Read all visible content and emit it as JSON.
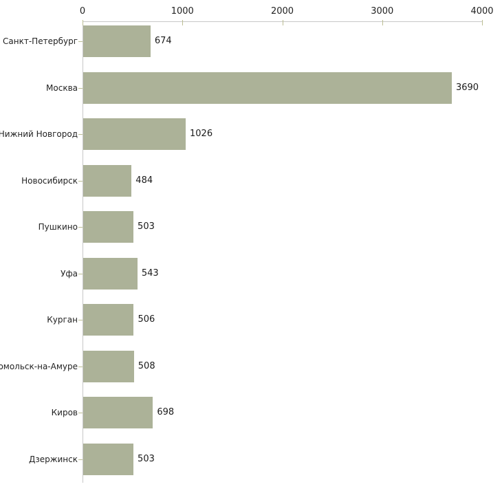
{
  "chart_data": {
    "type": "bar",
    "orientation": "horizontal",
    "title": "",
    "xlabel": "",
    "ylabel": "",
    "categories": [
      "Санкт-Петербург",
      "Москва",
      "Нижний Новгород",
      "Новосибирск",
      "Пушкино",
      "Уфа",
      "Курган",
      "мсомольск-на-Амуре",
      "Киров",
      "Дзержинск"
    ],
    "values": [
      674,
      3690,
      1026,
      484,
      503,
      543,
      506,
      508,
      698,
      503
    ],
    "value_labels": [
      "674",
      "3690",
      "1026",
      "484",
      "503",
      "543",
      "506",
      "508",
      "698",
      "503"
    ],
    "x_ticks": [
      0,
      1000,
      2000,
      3000,
      4000
    ],
    "x_tick_labels": [
      "0",
      "1000",
      "2000",
      "3000",
      "4000"
    ],
    "xlim": [
      0,
      4000
    ],
    "grid": false,
    "legend": "none",
    "axis_position": "top",
    "colors": {
      "bar_fill": "#acb298",
      "axis_line": "#c7c7c7",
      "tick_mark": "#bcbe93",
      "category_text": "#222222",
      "value_text": "#1a1a1a"
    }
  }
}
